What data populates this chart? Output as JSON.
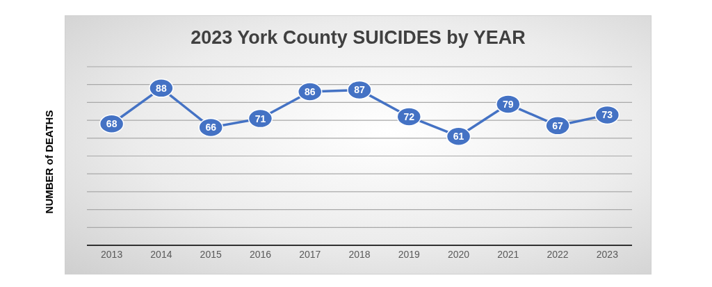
{
  "chart_data": {
    "type": "line",
    "title": "2023 York County SUICIDES by YEAR",
    "ylabel": "NUMBER of  DEATHS",
    "categories": [
      "2013",
      "2014",
      "2015",
      "2016",
      "2017",
      "2018",
      "2019",
      "2020",
      "2021",
      "2022",
      "2023"
    ],
    "values": [
      68,
      88,
      66,
      71,
      86,
      87,
      72,
      61,
      79,
      67,
      73
    ],
    "color": "#4472c4",
    "ylim": [
      0,
      100
    ],
    "yticks": [
      {
        "value": 0,
        "label": null
      },
      {
        "value": 10,
        "label": null
      },
      {
        "value": 20,
        "label": null
      },
      {
        "value": 30,
        "label": null
      },
      {
        "value": 40,
        "label": null
      },
      {
        "value": 50,
        "label": null
      },
      {
        "value": 60,
        "label": null
      },
      {
        "value": 70,
        "label": null
      },
      {
        "value": 80,
        "label": null
      },
      {
        "value": 90,
        "label": null
      },
      {
        "value": 100,
        "label": null
      }
    ],
    "tick_labels": "x",
    "grid": "y",
    "marker": "circle",
    "data_labels": true,
    "line_style": "solid",
    "legend": false
  }
}
